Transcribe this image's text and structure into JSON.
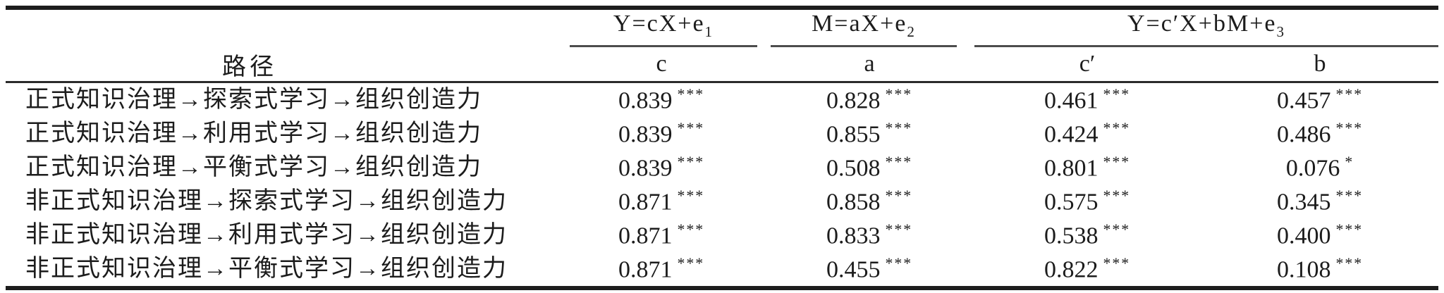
{
  "table": {
    "header": {
      "path_label": "路径",
      "group_c": {
        "pre": "Y=cX+e",
        "sub": "1"
      },
      "group_a": {
        "pre": "M=aX+e",
        "sub": "2"
      },
      "group_cb": {
        "pre": "Y=c′X+bM+e",
        "sub": "3"
      },
      "col_c": "c",
      "col_a": "a",
      "col_cp": "c′",
      "col_b": "b"
    },
    "rows": [
      {
        "path": "正式知识治理→探索式学习→组织创造力",
        "c": "0.839",
        "c_sig": "***",
        "a": "0.828",
        "a_sig": "***",
        "cp": "0.461",
        "cp_sig": "***",
        "b": "0.457",
        "b_sig": "***"
      },
      {
        "path": "正式知识治理→利用式学习→组织创造力",
        "c": "0.839",
        "c_sig": "***",
        "a": "0.855",
        "a_sig": "***",
        "cp": "0.424",
        "cp_sig": "***",
        "b": "0.486",
        "b_sig": "***"
      },
      {
        "path": "正式知识治理→平衡式学习→组织创造力",
        "c": "0.839",
        "c_sig": "***",
        "a": "0.508",
        "a_sig": "***",
        "cp": "0.801",
        "cp_sig": "***",
        "b": "0.076",
        "b_sig": "*"
      },
      {
        "path": "非正式知识治理→探索式学习→组织创造力",
        "c": "0.871",
        "c_sig": "***",
        "a": "0.858",
        "a_sig": "***",
        "cp": "0.575",
        "cp_sig": "***",
        "b": "0.345",
        "b_sig": "***"
      },
      {
        "path": "非正式知识治理→利用式学习→组织创造力",
        "c": "0.871",
        "c_sig": "***",
        "a": "0.833",
        "a_sig": "***",
        "cp": "0.538",
        "cp_sig": "***",
        "b": "0.400",
        "b_sig": "***"
      },
      {
        "path": "非正式知识治理→平衡式学习→组织创造力",
        "c": "0.871",
        "c_sig": "***",
        "a": "0.455",
        "a_sig": "***",
        "cp": "0.822",
        "cp_sig": "***",
        "b": "0.108",
        "b_sig": "***"
      }
    ],
    "colors": {
      "rule_heavy": "#1d1d1d",
      "rule_medium": "#2b2b2b",
      "rule_light": "#4d4d4d",
      "text": "#1c1c1c",
      "background": "#ffffff"
    }
  }
}
